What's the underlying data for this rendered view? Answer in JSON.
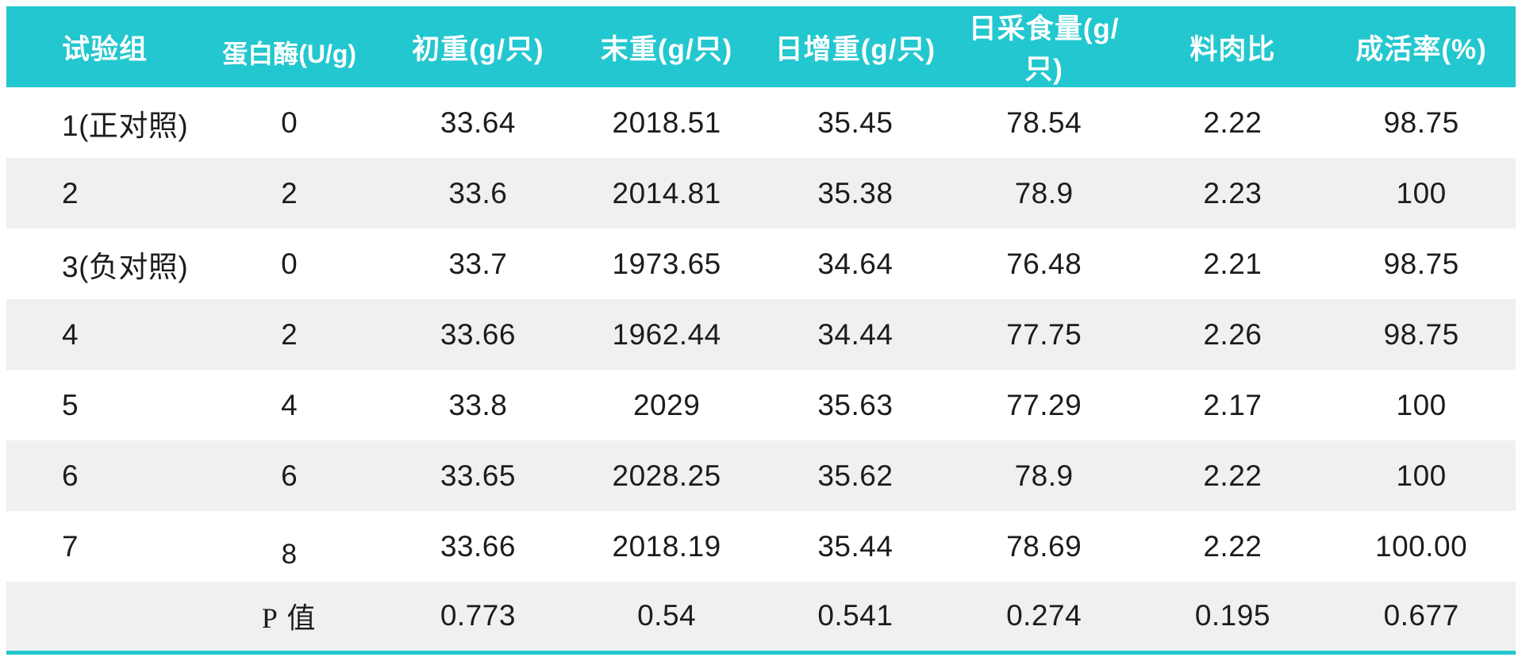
{
  "theme": {
    "accent_color": "#23c7cf",
    "stripe_color": "#f0f0f0",
    "header_text_color": "#ffffff",
    "body_text_color": "#1c1c1c"
  },
  "chart_data": {
    "type": "table",
    "title": "",
    "columns": [
      "试验组",
      "蛋白酶(U/g)",
      "初重(g/只)",
      "末重(g/只)",
      "日增重(g/只)",
      "日采食量(g/只)",
      "料肉比",
      "成活率(%)"
    ],
    "rows": [
      [
        "1(正对照)",
        "0",
        "33.64",
        "2018.51",
        "35.45",
        "78.54",
        "2.22",
        "98.75"
      ],
      [
        "2",
        "2",
        "33.6",
        "2014.81",
        "35.38",
        "78.9",
        "2.23",
        "100"
      ],
      [
        "3(负对照)",
        "0",
        "33.7",
        "1973.65",
        "34.64",
        "76.48",
        "2.21",
        "98.75"
      ],
      [
        "4",
        "2",
        "33.66",
        "1962.44",
        "34.44",
        "77.75",
        "2.26",
        "98.75"
      ],
      [
        "5",
        "4",
        "33.8",
        "2029",
        "35.63",
        "77.29",
        "2.17",
        "100"
      ],
      [
        "6",
        "6",
        "33.65",
        "2028.25",
        "35.62",
        "78.9",
        "2.22",
        "100"
      ],
      [
        "7",
        "8",
        "33.66",
        "2018.19",
        "35.44",
        "78.69",
        "2.22",
        "100.00"
      ],
      [
        "",
        "P 值",
        "0.773",
        "0.54",
        "0.541",
        "0.274",
        "0.195",
        "0.677"
      ]
    ]
  }
}
